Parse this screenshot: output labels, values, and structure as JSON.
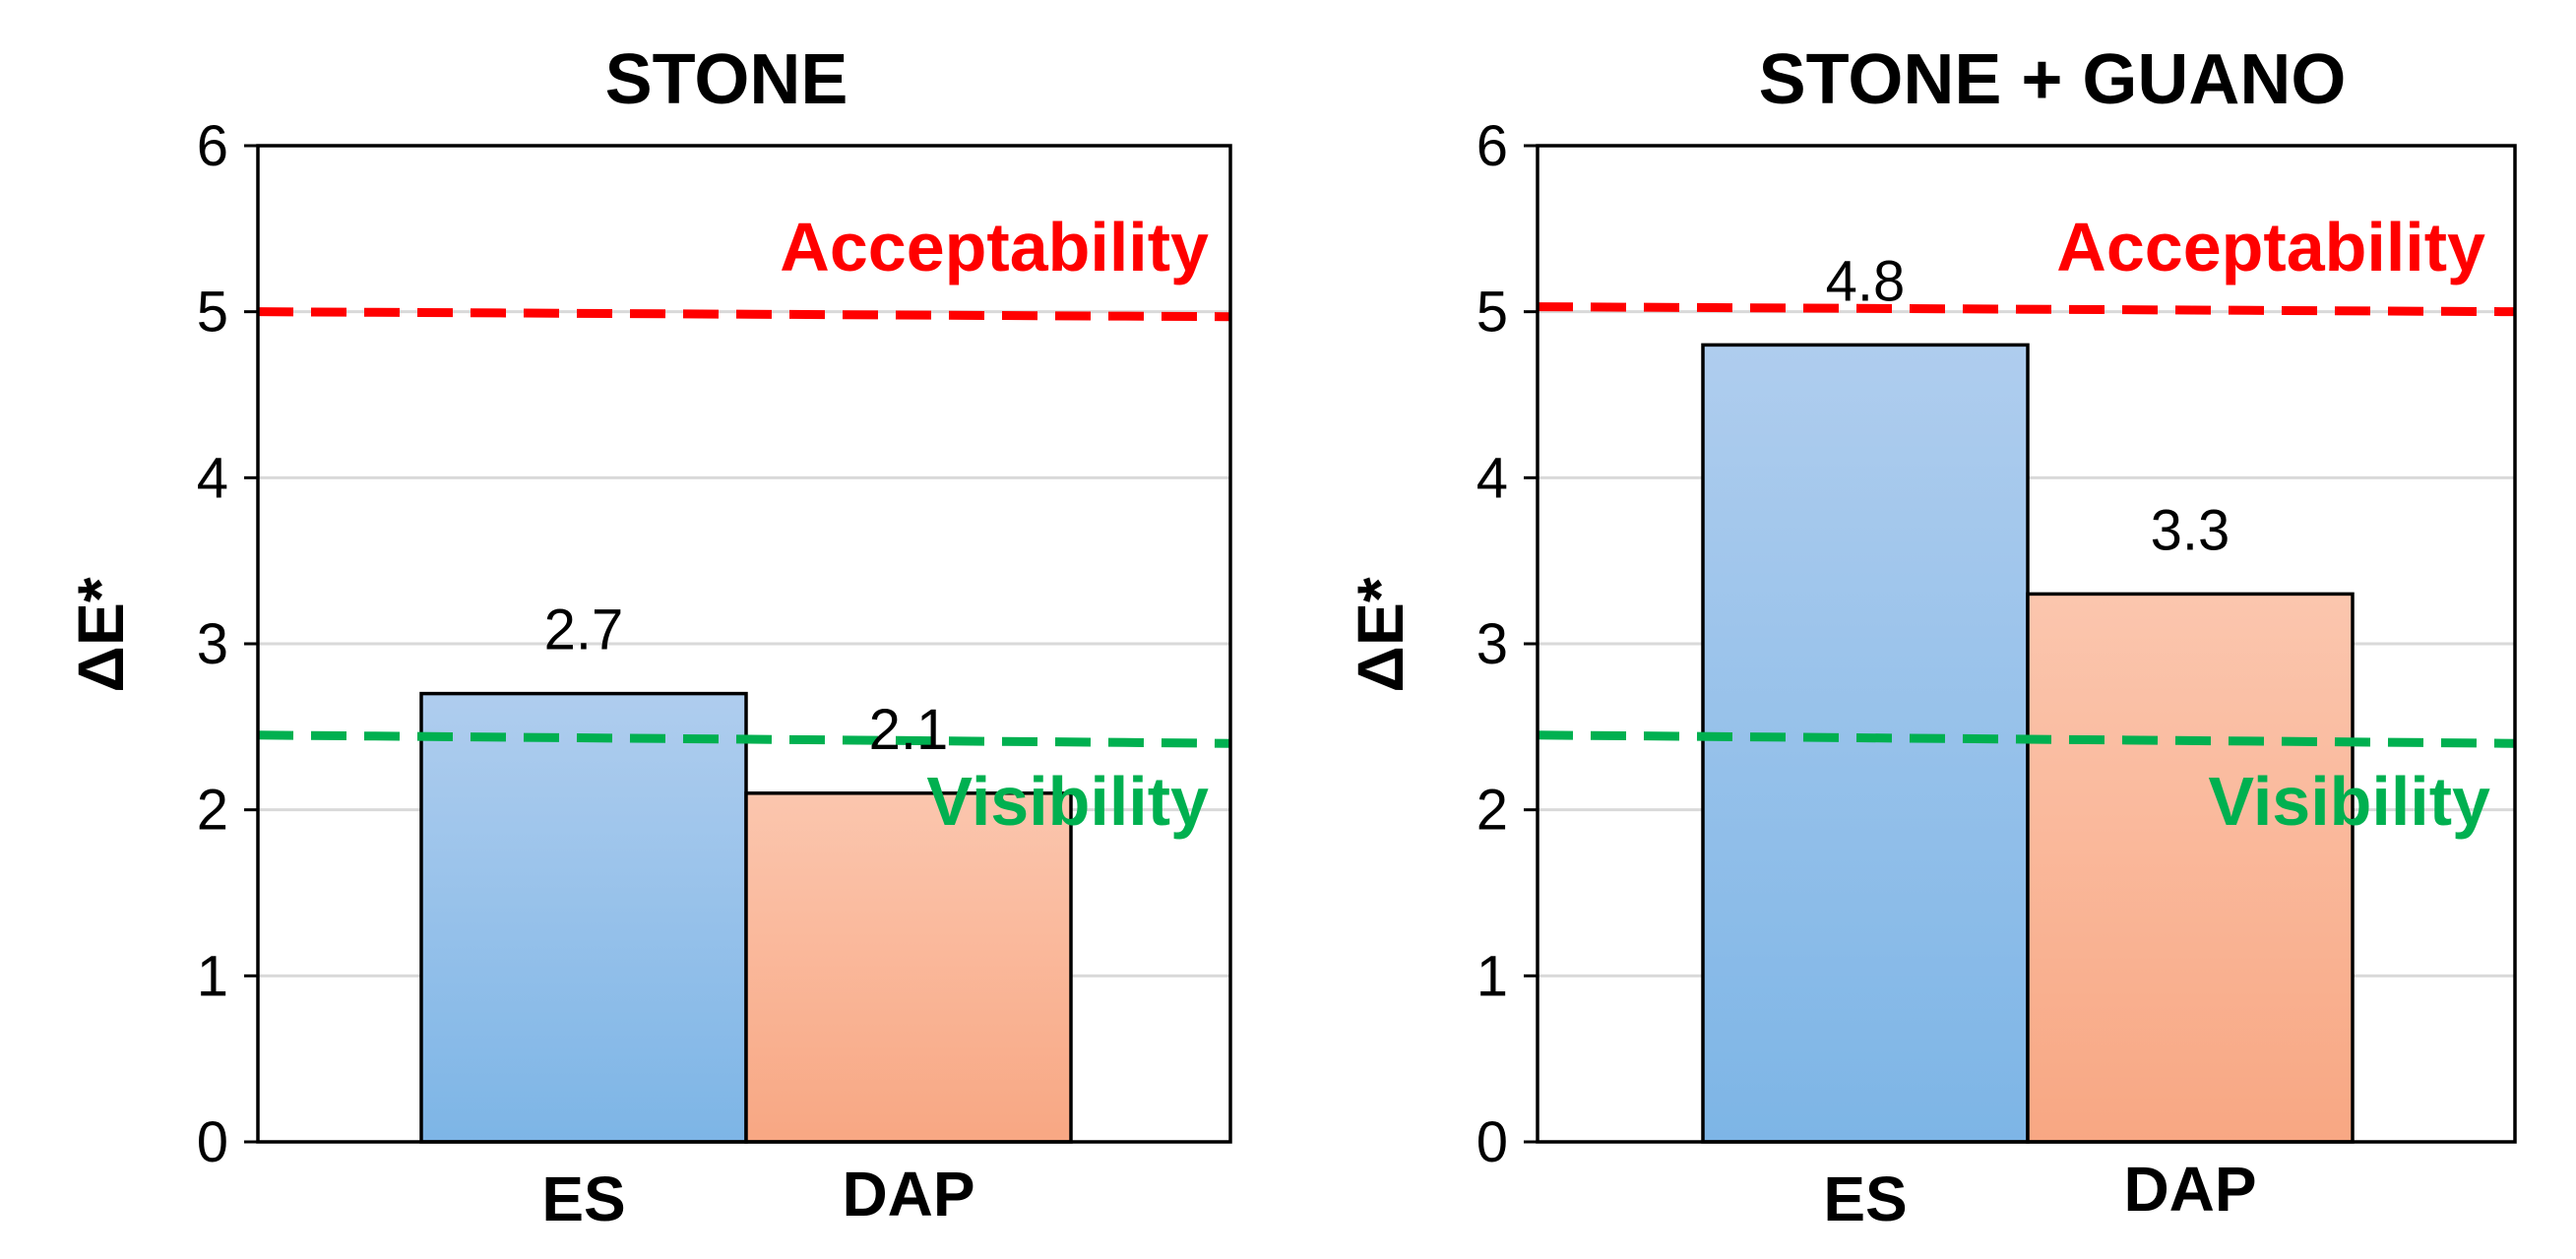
{
  "chart_data": [
    {
      "type": "bar",
      "title": "STONE",
      "ylabel": "ΔE*",
      "xlabel": "",
      "ylim": [
        0,
        6
      ],
      "yticks": [
        "0",
        "1",
        "2",
        "3",
        "4",
        "5",
        "6"
      ],
      "grid": true,
      "categories": [
        "ES",
        "DAP"
      ],
      "values": [
        2.7,
        2.1
      ],
      "data_labels": [
        "2.7",
        "2.1"
      ],
      "bar_colors": [
        [
          "#AFCDEE",
          "#7DB5E6"
        ],
        [
          "#FBC6AE",
          "#F8A783"
        ]
      ],
      "reference_lines": [
        {
          "label": "Acceptability",
          "value_start": 5.0,
          "value_end": 4.97,
          "color": "#FF0000"
        },
        {
          "label": "Visibility",
          "value_start": 2.45,
          "value_end": 2.4,
          "color": "#00B050"
        }
      ]
    },
    {
      "type": "bar",
      "title": "STONE + GUANO",
      "ylabel": "ΔE*",
      "xlabel": "",
      "ylim": [
        0,
        6
      ],
      "yticks": [
        "0",
        "1",
        "2",
        "3",
        "4",
        "5",
        "6"
      ],
      "grid": true,
      "categories": [
        "ES",
        "DAP"
      ],
      "values": [
        4.8,
        3.3
      ],
      "data_labels": [
        "4.8",
        "3.3"
      ],
      "bar_colors": [
        [
          "#AFCDEE",
          "#7DB5E6"
        ],
        [
          "#FBC6AE",
          "#F8A783"
        ]
      ],
      "reference_lines": [
        {
          "label": "Acceptability",
          "value_start": 5.03,
          "value_end": 5.0,
          "color": "#FF0000"
        },
        {
          "label": "Visibility",
          "value_start": 2.45,
          "value_end": 2.4,
          "color": "#00B050"
        }
      ]
    }
  ]
}
